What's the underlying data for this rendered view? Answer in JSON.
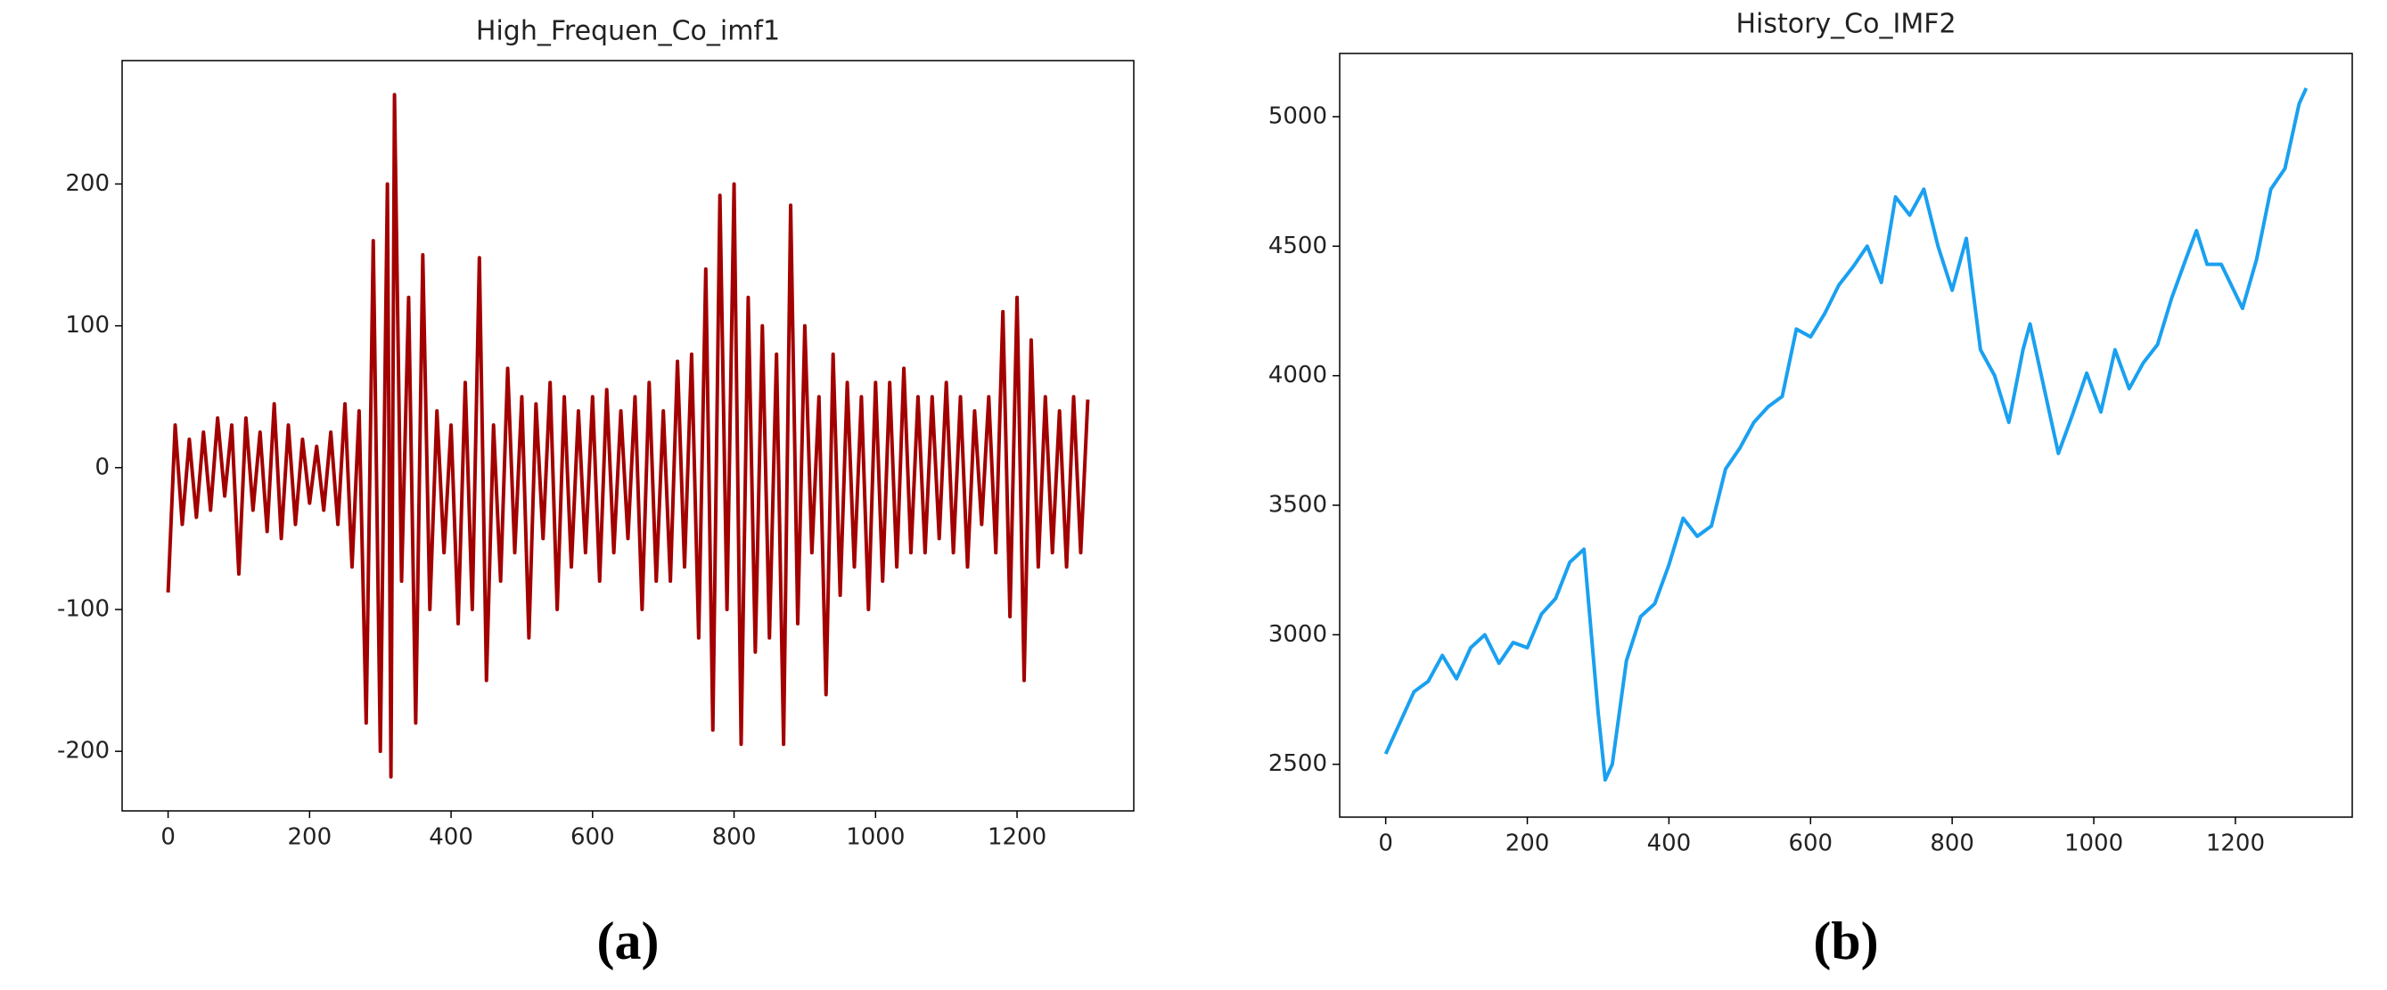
{
  "chart_data": [
    {
      "type": "line",
      "title": "High_Frequen_Co_imf1",
      "caption": "(a)",
      "x": [
        0,
        10,
        20,
        30,
        40,
        50,
        60,
        70,
        80,
        90,
        100,
        110,
        120,
        130,
        140,
        150,
        160,
        170,
        180,
        190,
        200,
        210,
        220,
        230,
        240,
        250,
        260,
        270,
        280,
        290,
        300,
        310,
        315,
        320,
        330,
        340,
        350,
        360,
        370,
        380,
        390,
        400,
        410,
        420,
        430,
        440,
        450,
        460,
        470,
        480,
        490,
        500,
        510,
        520,
        530,
        540,
        550,
        560,
        570,
        580,
        590,
        600,
        610,
        620,
        630,
        640,
        650,
        660,
        670,
        680,
        690,
        700,
        710,
        720,
        730,
        740,
        750,
        760,
        770,
        780,
        790,
        800,
        810,
        820,
        830,
        840,
        850,
        860,
        870,
        880,
        890,
        900,
        910,
        920,
        930,
        940,
        950,
        960,
        970,
        980,
        990,
        1000,
        1010,
        1020,
        1030,
        1040,
        1050,
        1060,
        1070,
        1080,
        1090,
        1100,
        1110,
        1120,
        1130,
        1140,
        1150,
        1160,
        1170,
        1180,
        1190,
        1200,
        1210,
        1220,
        1230,
        1240,
        1250,
        1260,
        1270,
        1280,
        1290,
        1300
      ],
      "series": [
        {
          "color": "#a30000",
          "values": [
            -88,
            30,
            -40,
            20,
            -35,
            25,
            -30,
            35,
            -20,
            30,
            -75,
            35,
            -30,
            25,
            -45,
            45,
            -50,
            30,
            -40,
            20,
            -25,
            15,
            -30,
            25,
            -40,
            45,
            -70,
            40,
            -180,
            160,
            -200,
            200,
            -218,
            263,
            -80,
            120,
            -180,
            150,
            -100,
            40,
            -60,
            30,
            -110,
            60,
            -100,
            148,
            -150,
            30,
            -80,
            70,
            -60,
            50,
            -120,
            45,
            -50,
            60,
            -100,
            50,
            -70,
            40,
            -60,
            50,
            -80,
            55,
            -60,
            40,
            -50,
            50,
            -100,
            60,
            -80,
            40,
            -80,
            75,
            -70,
            80,
            -120,
            140,
            -185,
            192,
            -100,
            200,
            -195,
            120,
            -130,
            100,
            -120,
            80,
            -195,
            185,
            -110,
            100,
            -60,
            50,
            -160,
            80,
            -90,
            60,
            -70,
            50,
            -100,
            60,
            -80,
            60,
            -70,
            70,
            -60,
            50,
            -60,
            50,
            -50,
            60,
            -60,
            50,
            -70,
            40,
            -40,
            50,
            -60,
            110,
            -105,
            120,
            -150,
            90,
            -70,
            50,
            -60,
            40,
            -70,
            50,
            -60,
            48
          ]
        }
      ],
      "xlim": [
        -65,
        1365
      ],
      "ylim": [
        -242,
        287
      ],
      "xticks": [
        0,
        200,
        400,
        600,
        800,
        1000,
        1200
      ],
      "yticks": [
        -200,
        -100,
        0,
        100,
        200
      ]
    },
    {
      "type": "line",
      "title": "History_Co_IMF2",
      "caption": "(b)",
      "x": [
        0,
        20,
        40,
        60,
        80,
        100,
        120,
        140,
        160,
        180,
        200,
        220,
        240,
        260,
        280,
        300,
        310,
        320,
        340,
        360,
        380,
        400,
        420,
        440,
        460,
        480,
        500,
        520,
        540,
        560,
        580,
        600,
        620,
        640,
        660,
        680,
        700,
        720,
        740,
        760,
        780,
        800,
        820,
        840,
        860,
        880,
        900,
        910,
        930,
        950,
        970,
        990,
        1010,
        1030,
        1050,
        1070,
        1090,
        1110,
        1130,
        1145,
        1160,
        1180,
        1210,
        1230,
        1250,
        1270,
        1290,
        1300
      ],
      "series": [
        {
          "color": "#1aa0f0",
          "values": [
            2540,
            2660,
            2780,
            2820,
            2920,
            2830,
            2950,
            3000,
            2890,
            2970,
            2950,
            3080,
            3140,
            3280,
            3330,
            2700,
            2440,
            2500,
            2900,
            3070,
            3120,
            3270,
            3450,
            3380,
            3420,
            3640,
            3720,
            3820,
            3880,
            3920,
            4180,
            4150,
            4240,
            4350,
            4420,
            4500,
            4360,
            4690,
            4620,
            4720,
            4500,
            4330,
            4530,
            4100,
            4000,
            3820,
            4100,
            4200,
            3950,
            3700,
            3850,
            4010,
            3860,
            4100,
            3950,
            4050,
            4120,
            4300,
            4450,
            4560,
            4430,
            4430,
            4260,
            4450,
            4720,
            4800,
            5050,
            5110
          ]
        }
      ],
      "xlim": [
        -65,
        1365
      ],
      "ylim": [
        2296,
        5244
      ],
      "xticks": [
        0,
        200,
        400,
        600,
        800,
        1000,
        1200
      ],
      "yticks": [
        2500,
        3000,
        3500,
        4000,
        4500,
        5000
      ]
    }
  ]
}
